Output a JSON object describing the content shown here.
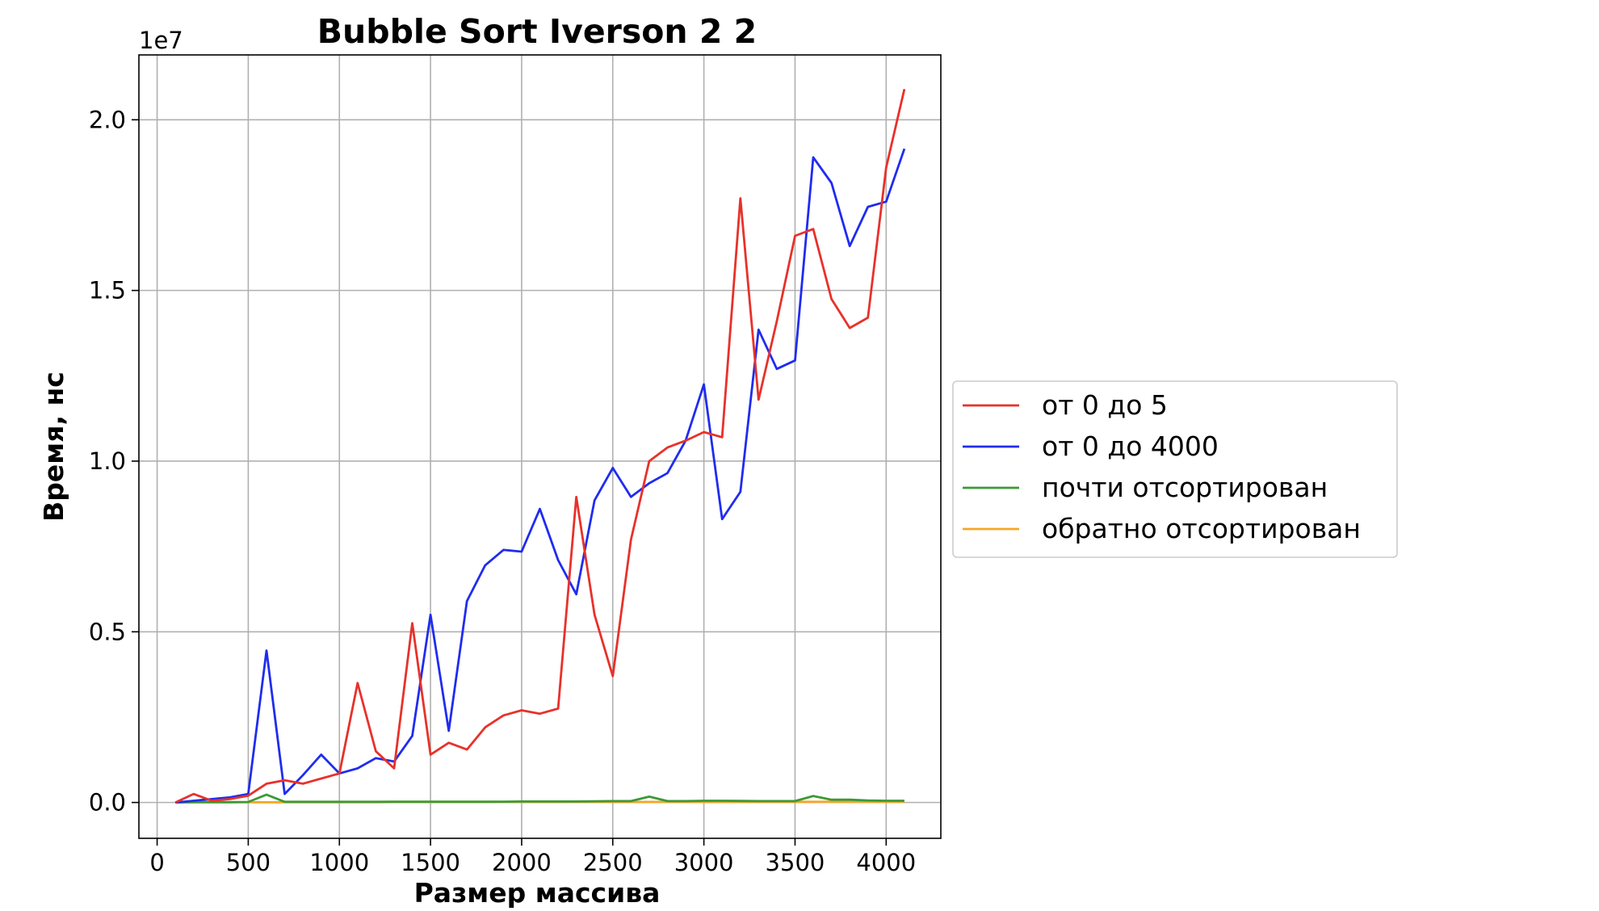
{
  "chart_data": {
    "type": "line",
    "title": "Bubble Sort Iverson 2 2",
    "xlabel": "Размер массива",
    "ylabel": "Время, нс",
    "y_offset_label": "1e7",
    "xlim": [
      -100,
      4300
    ],
    "ylim": [
      -1050000,
      21900000
    ],
    "x_ticks": [
      0,
      500,
      1000,
      1500,
      2000,
      2500,
      3000,
      3500,
      4000
    ],
    "x_tick_labels": [
      "0",
      "500",
      "1000",
      "1500",
      "2000",
      "2500",
      "3000",
      "3500",
      "4000"
    ],
    "y_ticks": [
      0,
      5000000,
      10000000,
      15000000,
      20000000
    ],
    "y_tick_labels": [
      "0.0",
      "0.5",
      "1.0",
      "1.5",
      "2.0"
    ],
    "grid": true,
    "legend_position": "outside-right",
    "x": [
      100,
      200,
      300,
      400,
      500,
      600,
      700,
      800,
      900,
      1000,
      1100,
      1200,
      1300,
      1400,
      1500,
      1600,
      1700,
      1800,
      1900,
      2000,
      2100,
      2200,
      2300,
      2400,
      2500,
      2600,
      2700,
      2800,
      2900,
      3000,
      3100,
      3200,
      3300,
      3400,
      3500,
      3600,
      3700,
      3800,
      3900,
      4000,
      4100
    ],
    "series": [
      {
        "name": "от 0 до 5",
        "color": "#e8312a",
        "values": [
          0,
          250000,
          50000,
          100000,
          200000,
          550000,
          650000,
          550000,
          700000,
          850000,
          3500000,
          1500000,
          1000000,
          5250000,
          1400000,
          1750000,
          1550000,
          2200000,
          2550000,
          2700000,
          2600000,
          2750000,
          8950000,
          5500000,
          3700000,
          7700000,
          10000000,
          10400000,
          10600000,
          10850000,
          10700000,
          17700000,
          11800000,
          14100000,
          16600000,
          16800000,
          14750000,
          13900000,
          14200000,
          18600000,
          20900000
        ]
      },
      {
        "name": "от 0 до 4000",
        "color": "#1f2cf0",
        "values": [
          0,
          50000,
          100000,
          150000,
          250000,
          4450000,
          250000,
          800000,
          1400000,
          850000,
          1000000,
          1300000,
          1200000,
          1950000,
          5500000,
          2100000,
          5900000,
          6950000,
          7400000,
          7350000,
          8600000,
          7100000,
          6100000,
          8850000,
          9800000,
          8950000,
          9350000,
          9650000,
          10600000,
          12250000,
          8300000,
          9100000,
          13850000,
          12700000,
          12950000,
          18900000,
          18150000,
          16300000,
          17450000,
          17600000,
          19150000
        ]
      },
      {
        "name": "почти отсортирован",
        "color": "#3a9a38",
        "values": [
          0,
          10000,
          10000,
          10000,
          15000,
          230000,
          20000,
          20000,
          20000,
          20000,
          20000,
          20000,
          25000,
          25000,
          25000,
          25000,
          25000,
          25000,
          25000,
          30000,
          30000,
          30000,
          30000,
          35000,
          40000,
          40000,
          170000,
          40000,
          40000,
          50000,
          50000,
          45000,
          40000,
          40000,
          40000,
          190000,
          80000,
          80000,
          60000,
          50000,
          50000
        ]
      },
      {
        "name": "обратно отсортирован",
        "color": "#f5a623",
        "values": [
          0,
          3000,
          3000,
          4000,
          5000,
          5000,
          6000,
          6000,
          7000,
          7000,
          8000,
          8000,
          9000,
          9000,
          10000,
          10000,
          11000,
          11000,
          12000,
          12000,
          13000,
          13000,
          14000,
          14000,
          15000,
          15000,
          16000,
          16000,
          17000,
          17000,
          18000,
          18000,
          19000,
          19000,
          20000,
          20000,
          21000,
          21000,
          22000,
          22000,
          23000
        ]
      }
    ]
  }
}
